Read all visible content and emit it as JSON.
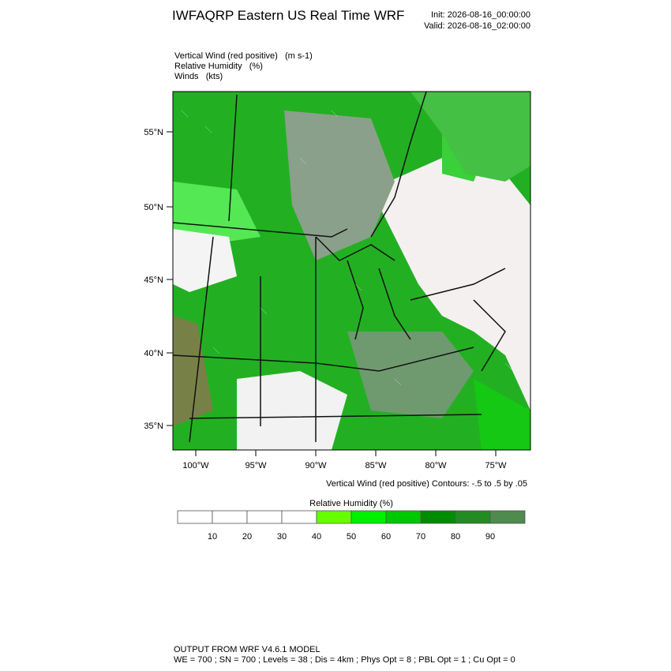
{
  "header": {
    "title": "IWFAQRP Eastern US Real Time WRF",
    "init": "Init: 2026-08-16_00:00:00",
    "valid": "Valid: 2026-08-16_02:00:00"
  },
  "fields": [
    "Vertical Wind (red positive)   (m s-1)",
    "Relative Humidity   (%)",
    "Winds   (kts)"
  ],
  "map": {
    "lat_labels": [
      "55°N",
      "50°N",
      "45°N",
      "40°N",
      "35°N"
    ],
    "lon_labels": [
      "100°W",
      "95°W",
      "90°W",
      "85°W",
      "80°W",
      "75°W"
    ],
    "contour_note": "Vertical Wind (red positive) Contours: -.5 to .5 by .05"
  },
  "colorbar": {
    "title": "Relative Humidity  (%)",
    "labels": [
      "10",
      "20",
      "30",
      "40",
      "50",
      "60",
      "70",
      "80",
      "90"
    ],
    "colors": [
      "#ffffff",
      "#ffffff",
      "#ffffff",
      "#ffffff",
      "#66ff00",
      "#00f000",
      "#00c800",
      "#008c00",
      "#228b22",
      "#4f8a4f"
    ]
  },
  "footer": [
    "OUTPUT FROM WRF V4.6.1 MODEL",
    "WE = 700 ; SN = 700 ; Levels = 38 ; Dis = 4km ; Phys Opt = 8 ; PBL Opt = 1 ; Cu Opt = 0"
  ]
}
